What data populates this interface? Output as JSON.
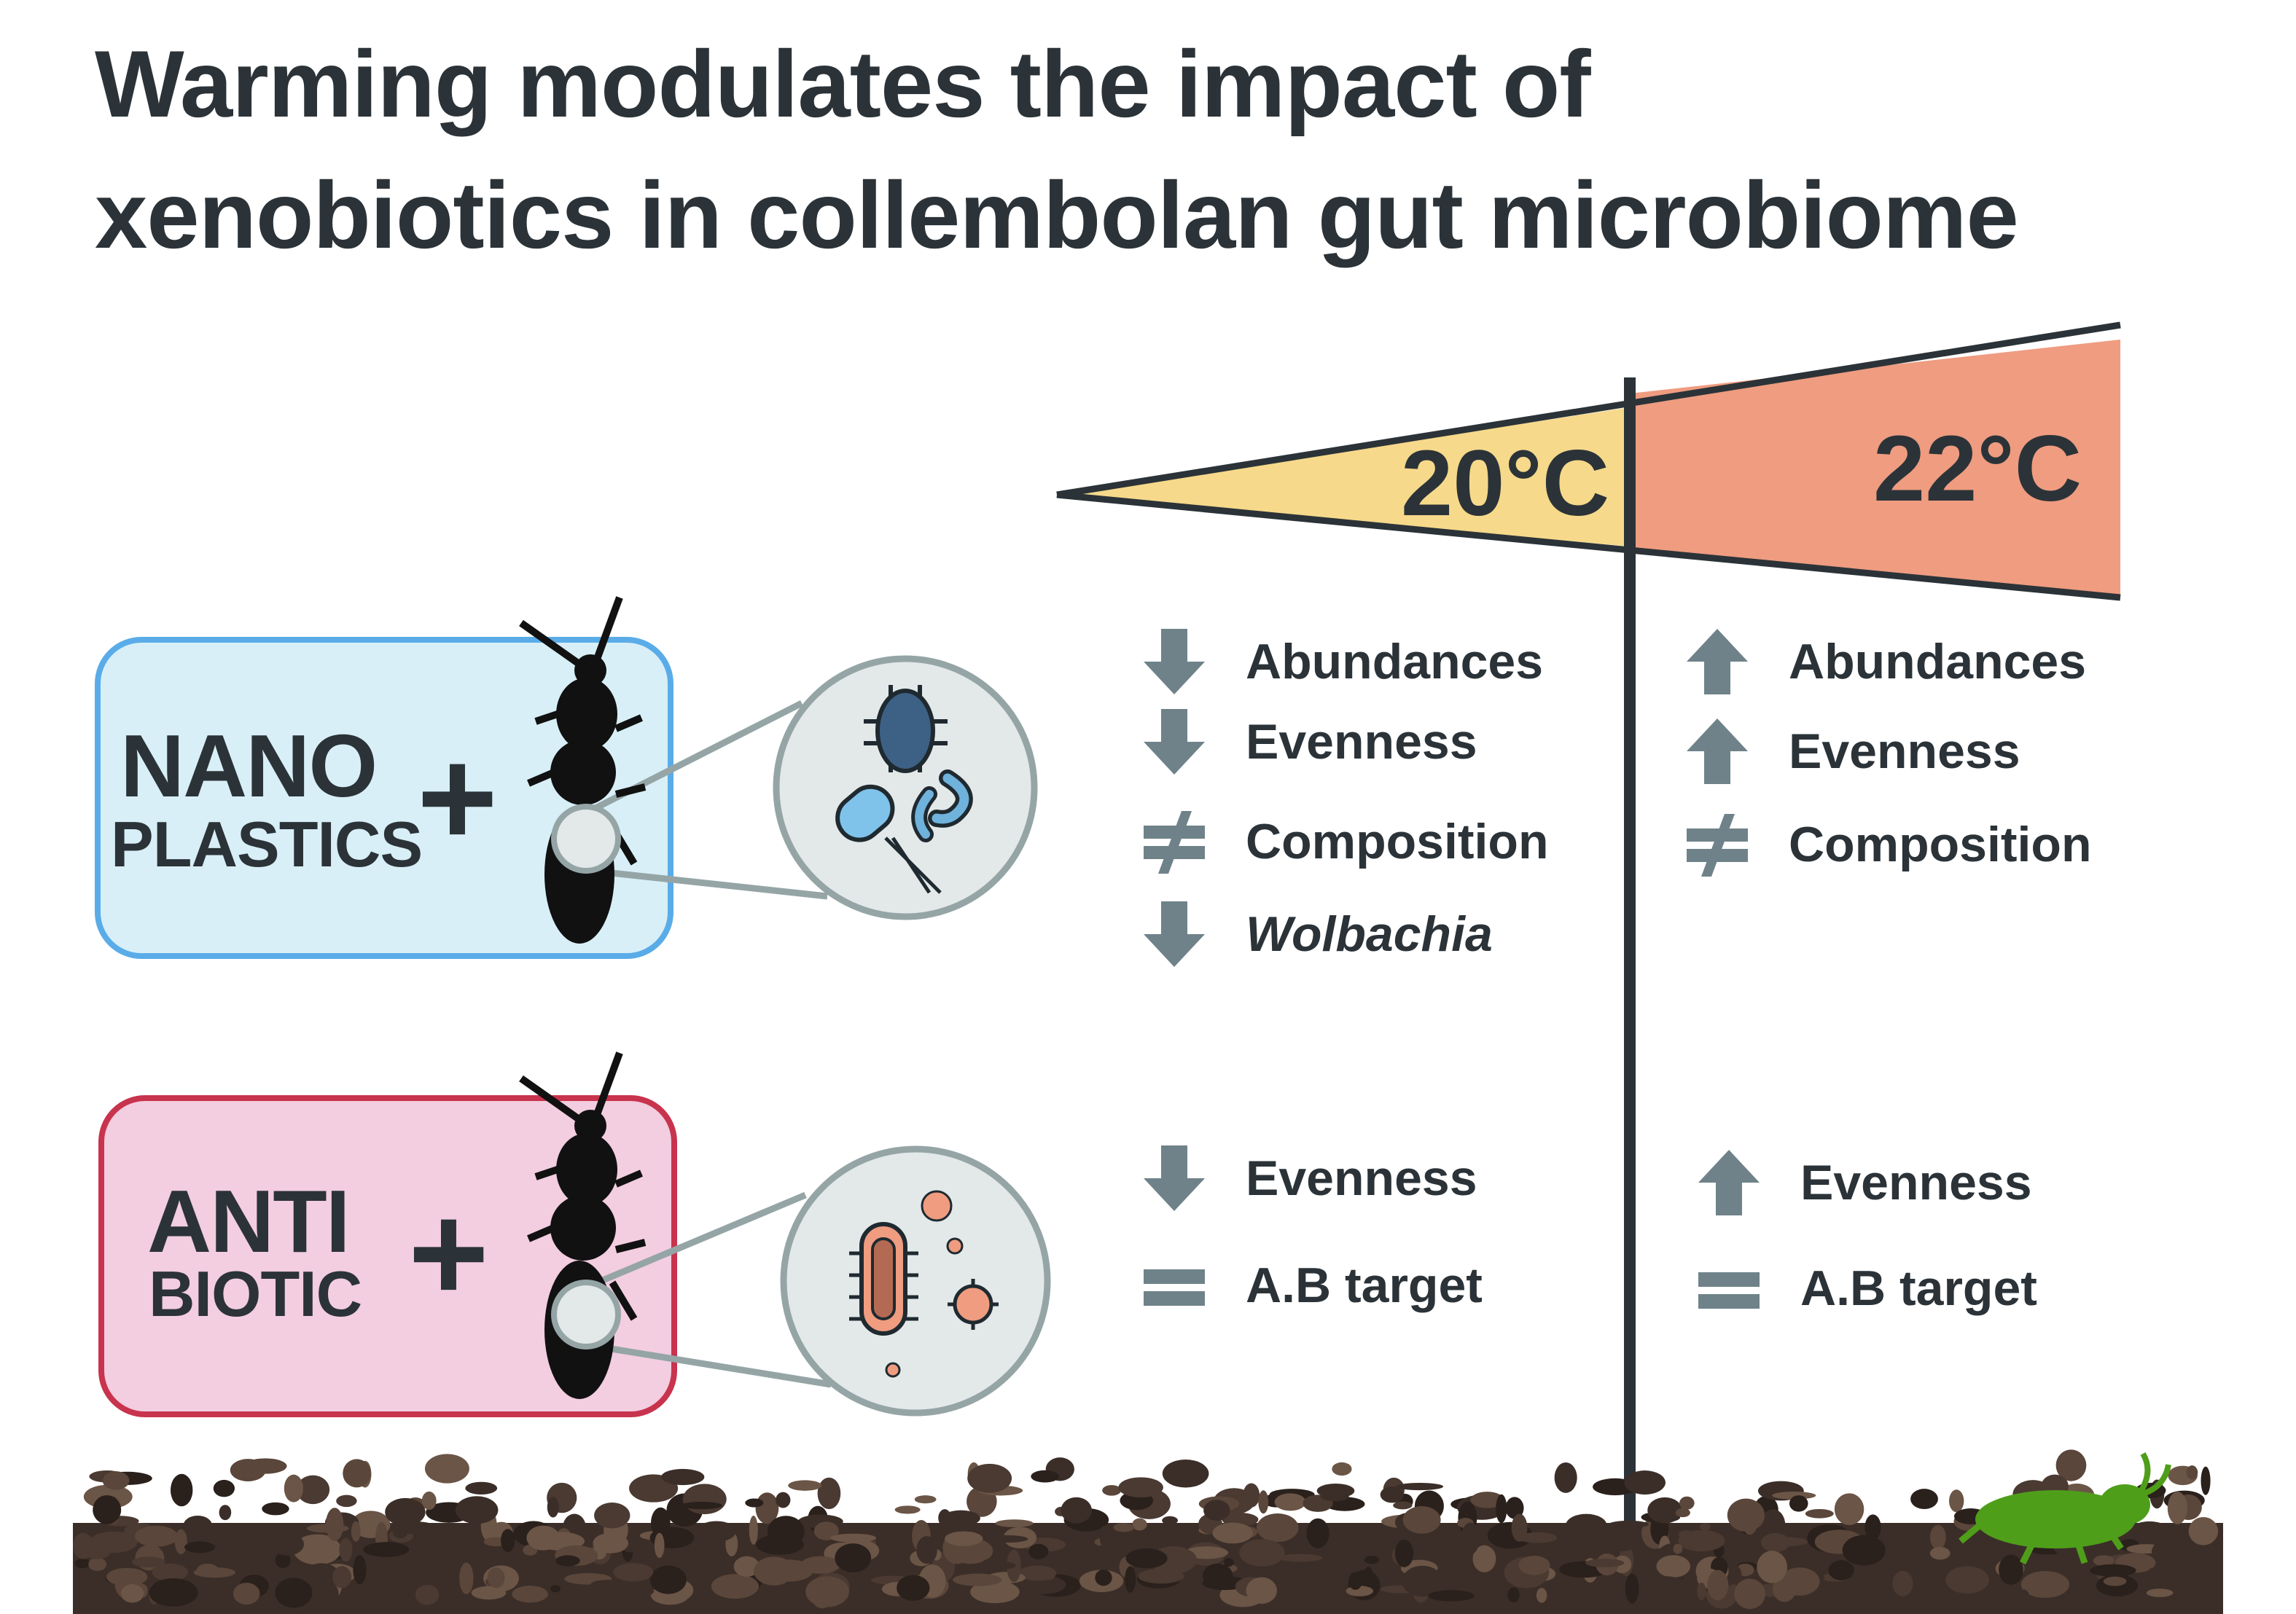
{
  "title": {
    "line1": "Warming modulates the impact of",
    "line2": "xenobiotics in collembolan gut microbiome"
  },
  "temperatures": {
    "low": "20°C",
    "high": "22°C"
  },
  "treatments": [
    {
      "line1": "NANO",
      "line2": "PLASTICS",
      "plus": "+"
    },
    {
      "line1": "ANTI",
      "line2": "BIOTIC",
      "plus": "+"
    }
  ],
  "effects": {
    "nano_20": [
      {
        "icon": "arrow-down",
        "label": "Abundances"
      },
      {
        "icon": "arrow-down",
        "label": "Evenness"
      },
      {
        "icon": "not-equal",
        "label": "Composition"
      },
      {
        "icon": "arrow-down",
        "label": "Wolbachia"
      }
    ],
    "nano_22": [
      {
        "icon": "arrow-up",
        "label": "Abundances"
      },
      {
        "icon": "arrow-up",
        "label": "Evenness"
      },
      {
        "icon": "not-equal",
        "label": "Composition"
      }
    ],
    "anti_20": [
      {
        "icon": "arrow-down",
        "label": "Evenness"
      },
      {
        "icon": "equals",
        "label": "A.B target"
      }
    ],
    "anti_22": [
      {
        "icon": "arrow-up",
        "label": "Evenness"
      },
      {
        "icon": "equals",
        "label": "A.B target"
      }
    ]
  },
  "colors": {
    "text": "#2b3338",
    "warm_low": "#f6d98a",
    "warm_high": "#ef9c80",
    "nano_fill": "#d8eff7",
    "nano_border": "#5aace8",
    "anti_fill": "#f3cde0",
    "anti_border": "#c8334d",
    "icon_gray": "#6f8289",
    "soil": "#3b2e28",
    "springtail": "#4f9e1a"
  }
}
